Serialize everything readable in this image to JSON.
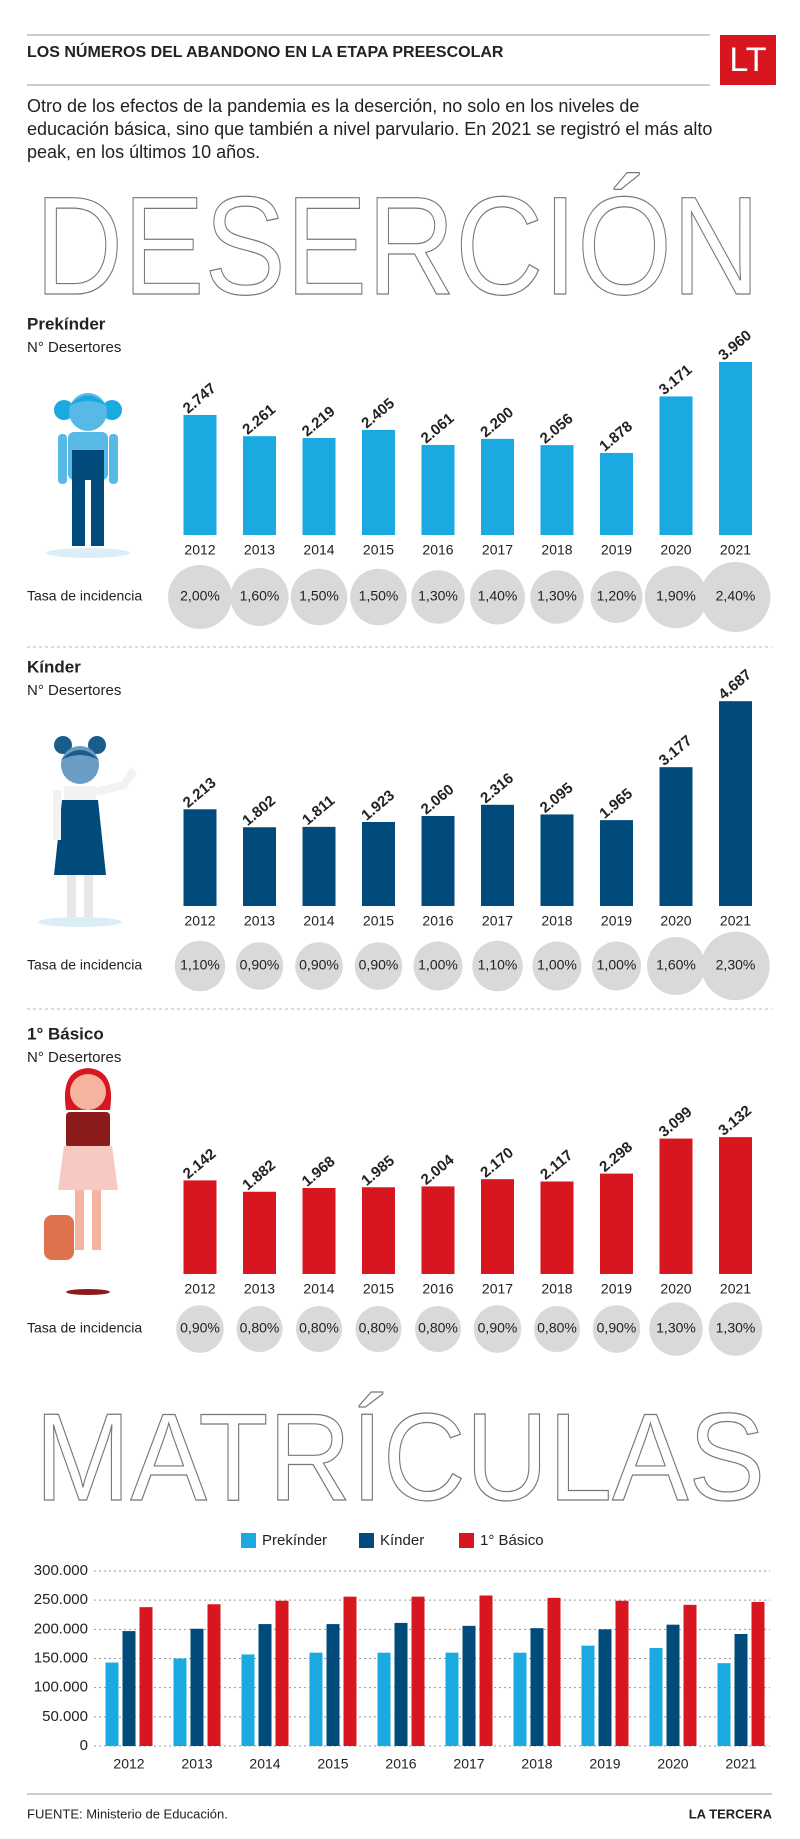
{
  "header": {
    "title": "LOS NÚMEROS DEL ABANDONO EN LA ETAPA PREESCOLAR",
    "logo": "LT",
    "intro": "Otro de los efectos de la pandemia es la deserción, no solo en los niveles de educación básica, sino que también a nivel parvulario. En 2021 se registró el más alto peak,  en los últimos 10 años."
  },
  "section_titles": [
    "DESERCIÓN",
    "MATRÍCULAS"
  ],
  "chart_data": [
    {
      "type": "bar",
      "title": "Prekínder",
      "subtitle": "N° Desertores",
      "categories": [
        "2012",
        "2013",
        "2014",
        "2015",
        "2016",
        "2017",
        "2018",
        "2019",
        "2020",
        "2021"
      ],
      "values": [
        2747,
        2261,
        2219,
        2405,
        2061,
        2200,
        2056,
        1878,
        3171,
        3960
      ],
      "value_labels": [
        "2.747",
        "2.261",
        "2.219",
        "2.405",
        "2.061",
        "2.200",
        "2.056",
        "1.878",
        "3.171",
        "3.960"
      ],
      "color": "#1aa9e1",
      "rate_title": "Tasa de incidencia",
      "rates": [
        2.0,
        1.6,
        1.5,
        1.5,
        1.3,
        1.4,
        1.3,
        1.2,
        1.9,
        2.4
      ],
      "rate_labels": [
        "2,00%",
        "1,60%",
        "1,50%",
        "1,50%",
        "1,30%",
        "1,40%",
        "1,30%",
        "1,20%",
        "1,90%",
        "2,40%"
      ]
    },
    {
      "type": "bar",
      "title": "Kínder",
      "subtitle": "N° Desertores",
      "categories": [
        "2012",
        "2013",
        "2014",
        "2015",
        "2016",
        "2017",
        "2018",
        "2019",
        "2020",
        "2021"
      ],
      "values": [
        2213,
        1802,
        1811,
        1923,
        2060,
        2316,
        2095,
        1965,
        3177,
        4687
      ],
      "value_labels": [
        "2.213",
        "1.802",
        "1.811",
        "1.923",
        "2.060",
        "2.316",
        "2.095",
        "1.965",
        "3.177",
        "4.687"
      ],
      "color": "#004b7c",
      "rate_title": "Tasa de incidencia",
      "rates": [
        1.1,
        0.9,
        0.9,
        0.9,
        1.0,
        1.1,
        1.0,
        1.0,
        1.6,
        2.3
      ],
      "rate_labels": [
        "1,10%",
        "0,90%",
        "0,90%",
        "0,90%",
        "1,00%",
        "1,10%",
        "1,00%",
        "1,00%",
        "1,60%",
        "2,30%"
      ]
    },
    {
      "type": "bar",
      "title": "1° Básico",
      "subtitle": "N° Desertores",
      "categories": [
        "2012",
        "2013",
        "2014",
        "2015",
        "2016",
        "2017",
        "2018",
        "2019",
        "2020",
        "2021"
      ],
      "values": [
        2142,
        1882,
        1968,
        1985,
        2004,
        2170,
        2117,
        2298,
        3099,
        3132
      ],
      "value_labels": [
        "2.142",
        "1.882",
        "1.968",
        "1.985",
        "2.004",
        "2.170",
        "2.117",
        "2.298",
        "3.099",
        "3.132"
      ],
      "color": "#d7161f",
      "rate_title": "Tasa de incidencia",
      "rates": [
        0.9,
        0.8,
        0.8,
        0.8,
        0.8,
        0.9,
        0.8,
        0.9,
        1.3,
        1.3
      ],
      "rate_labels": [
        "0,90%",
        "0,80%",
        "0,80%",
        "0,80%",
        "0,80%",
        "0,90%",
        "0,80%",
        "0,90%",
        "1,30%",
        "1,30%"
      ]
    },
    {
      "type": "grouped_bar",
      "categories": [
        "2012",
        "2013",
        "2014",
        "2015",
        "2016",
        "2017",
        "2018",
        "2019",
        "2020",
        "2021"
      ],
      "series": [
        {
          "name": "Prekínder",
          "color": "#1aa9e1",
          "values": [
            143000,
            150000,
            157000,
            160000,
            160000,
            160000,
            160000,
            172000,
            168000,
            142000
          ]
        },
        {
          "name": "Kínder",
          "color": "#004b7c",
          "values": [
            197000,
            201000,
            209000,
            209000,
            211000,
            206000,
            202000,
            200000,
            208000,
            192000
          ]
        },
        {
          "name": "1° Básico",
          "color": "#d7161f",
          "values": [
            238000,
            243000,
            249000,
            256000,
            256000,
            258000,
            254000,
            249000,
            242000,
            247000
          ]
        }
      ],
      "ylim": [
        0,
        300000
      ],
      "yticks": [
        0,
        {
          "value": 50000,
          "label": "50.000"
        },
        {
          "value": 100000,
          "label": "100.000"
        },
        {
          "value": 150000,
          "label": "150.000"
        },
        {
          "value": 200000,
          "label": "200.000"
        },
        {
          "value": 250000,
          "label": "250.000"
        },
        {
          "value": 300000,
          "label": "300.000"
        }
      ],
      "grid": true,
      "legend": "top"
    }
  ],
  "footer": {
    "source": "FUENTE: Ministerio de Educación.",
    "brand": "LA TERCERA"
  }
}
